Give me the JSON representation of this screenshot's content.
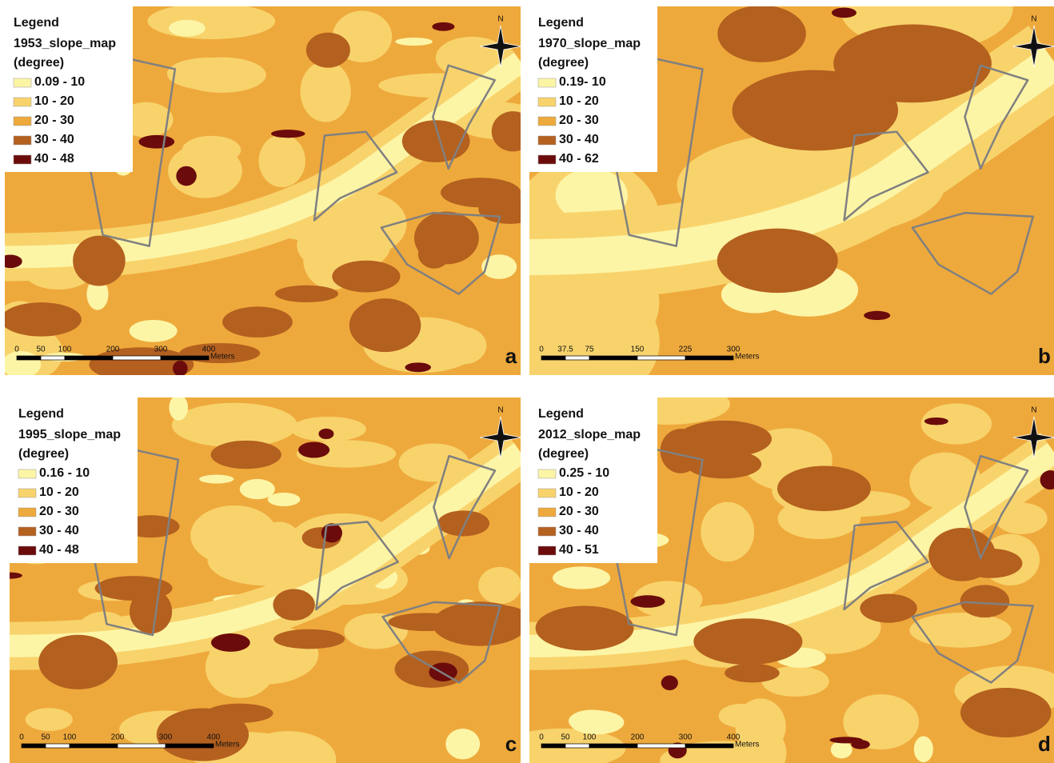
{
  "class_colors": [
    "#fdf5a6",
    "#f8d36c",
    "#eea93c",
    "#b4601f",
    "#6b0b0b"
  ],
  "panels": [
    {
      "label": "a",
      "legend_heading": "Legend",
      "layer": "1953_slope_map",
      "unit": "(degree)",
      "classes": [
        "0.09 - 10",
        "10 - 20",
        "20 - 30",
        "30 - 40",
        "40 - 48"
      ],
      "scale_ticks": [
        0,
        50,
        100,
        200,
        300,
        400
      ],
      "scale_unit": "Meters",
      "north": "N"
    },
    {
      "label": "b",
      "legend_heading": "Legend",
      "layer": "1970_slope_map",
      "unit": "(degree)",
      "classes": [
        "0.19- 10",
        "10 - 20",
        "20 - 30",
        "30 - 40",
        "40 - 62"
      ],
      "scale_ticks": [
        0,
        37.5,
        75,
        150,
        225,
        300
      ],
      "scale_unit": "Meters",
      "north": "N"
    },
    {
      "label": "c",
      "legend_heading": "Legend",
      "layer": "1995_slope_map",
      "unit": "(degree)",
      "classes": [
        "0.16 - 10",
        "10 - 20",
        "20 - 30",
        "30 - 40",
        "40 - 48"
      ],
      "scale_ticks": [
        0,
        50,
        100,
        200,
        300,
        400
      ],
      "scale_unit": "Meters",
      "north": "N"
    },
    {
      "label": "d",
      "legend_heading": "Legend",
      "layer": "2012_slope_map",
      "unit": "(degree)",
      "classes": [
        "0.25 - 10",
        "10 - 20",
        "20 - 30",
        "30 - 40",
        "40 - 51"
      ],
      "scale_ticks": [
        0,
        50,
        100,
        200,
        300,
        400
      ],
      "scale_unit": "Meters",
      "north": "N"
    }
  ]
}
